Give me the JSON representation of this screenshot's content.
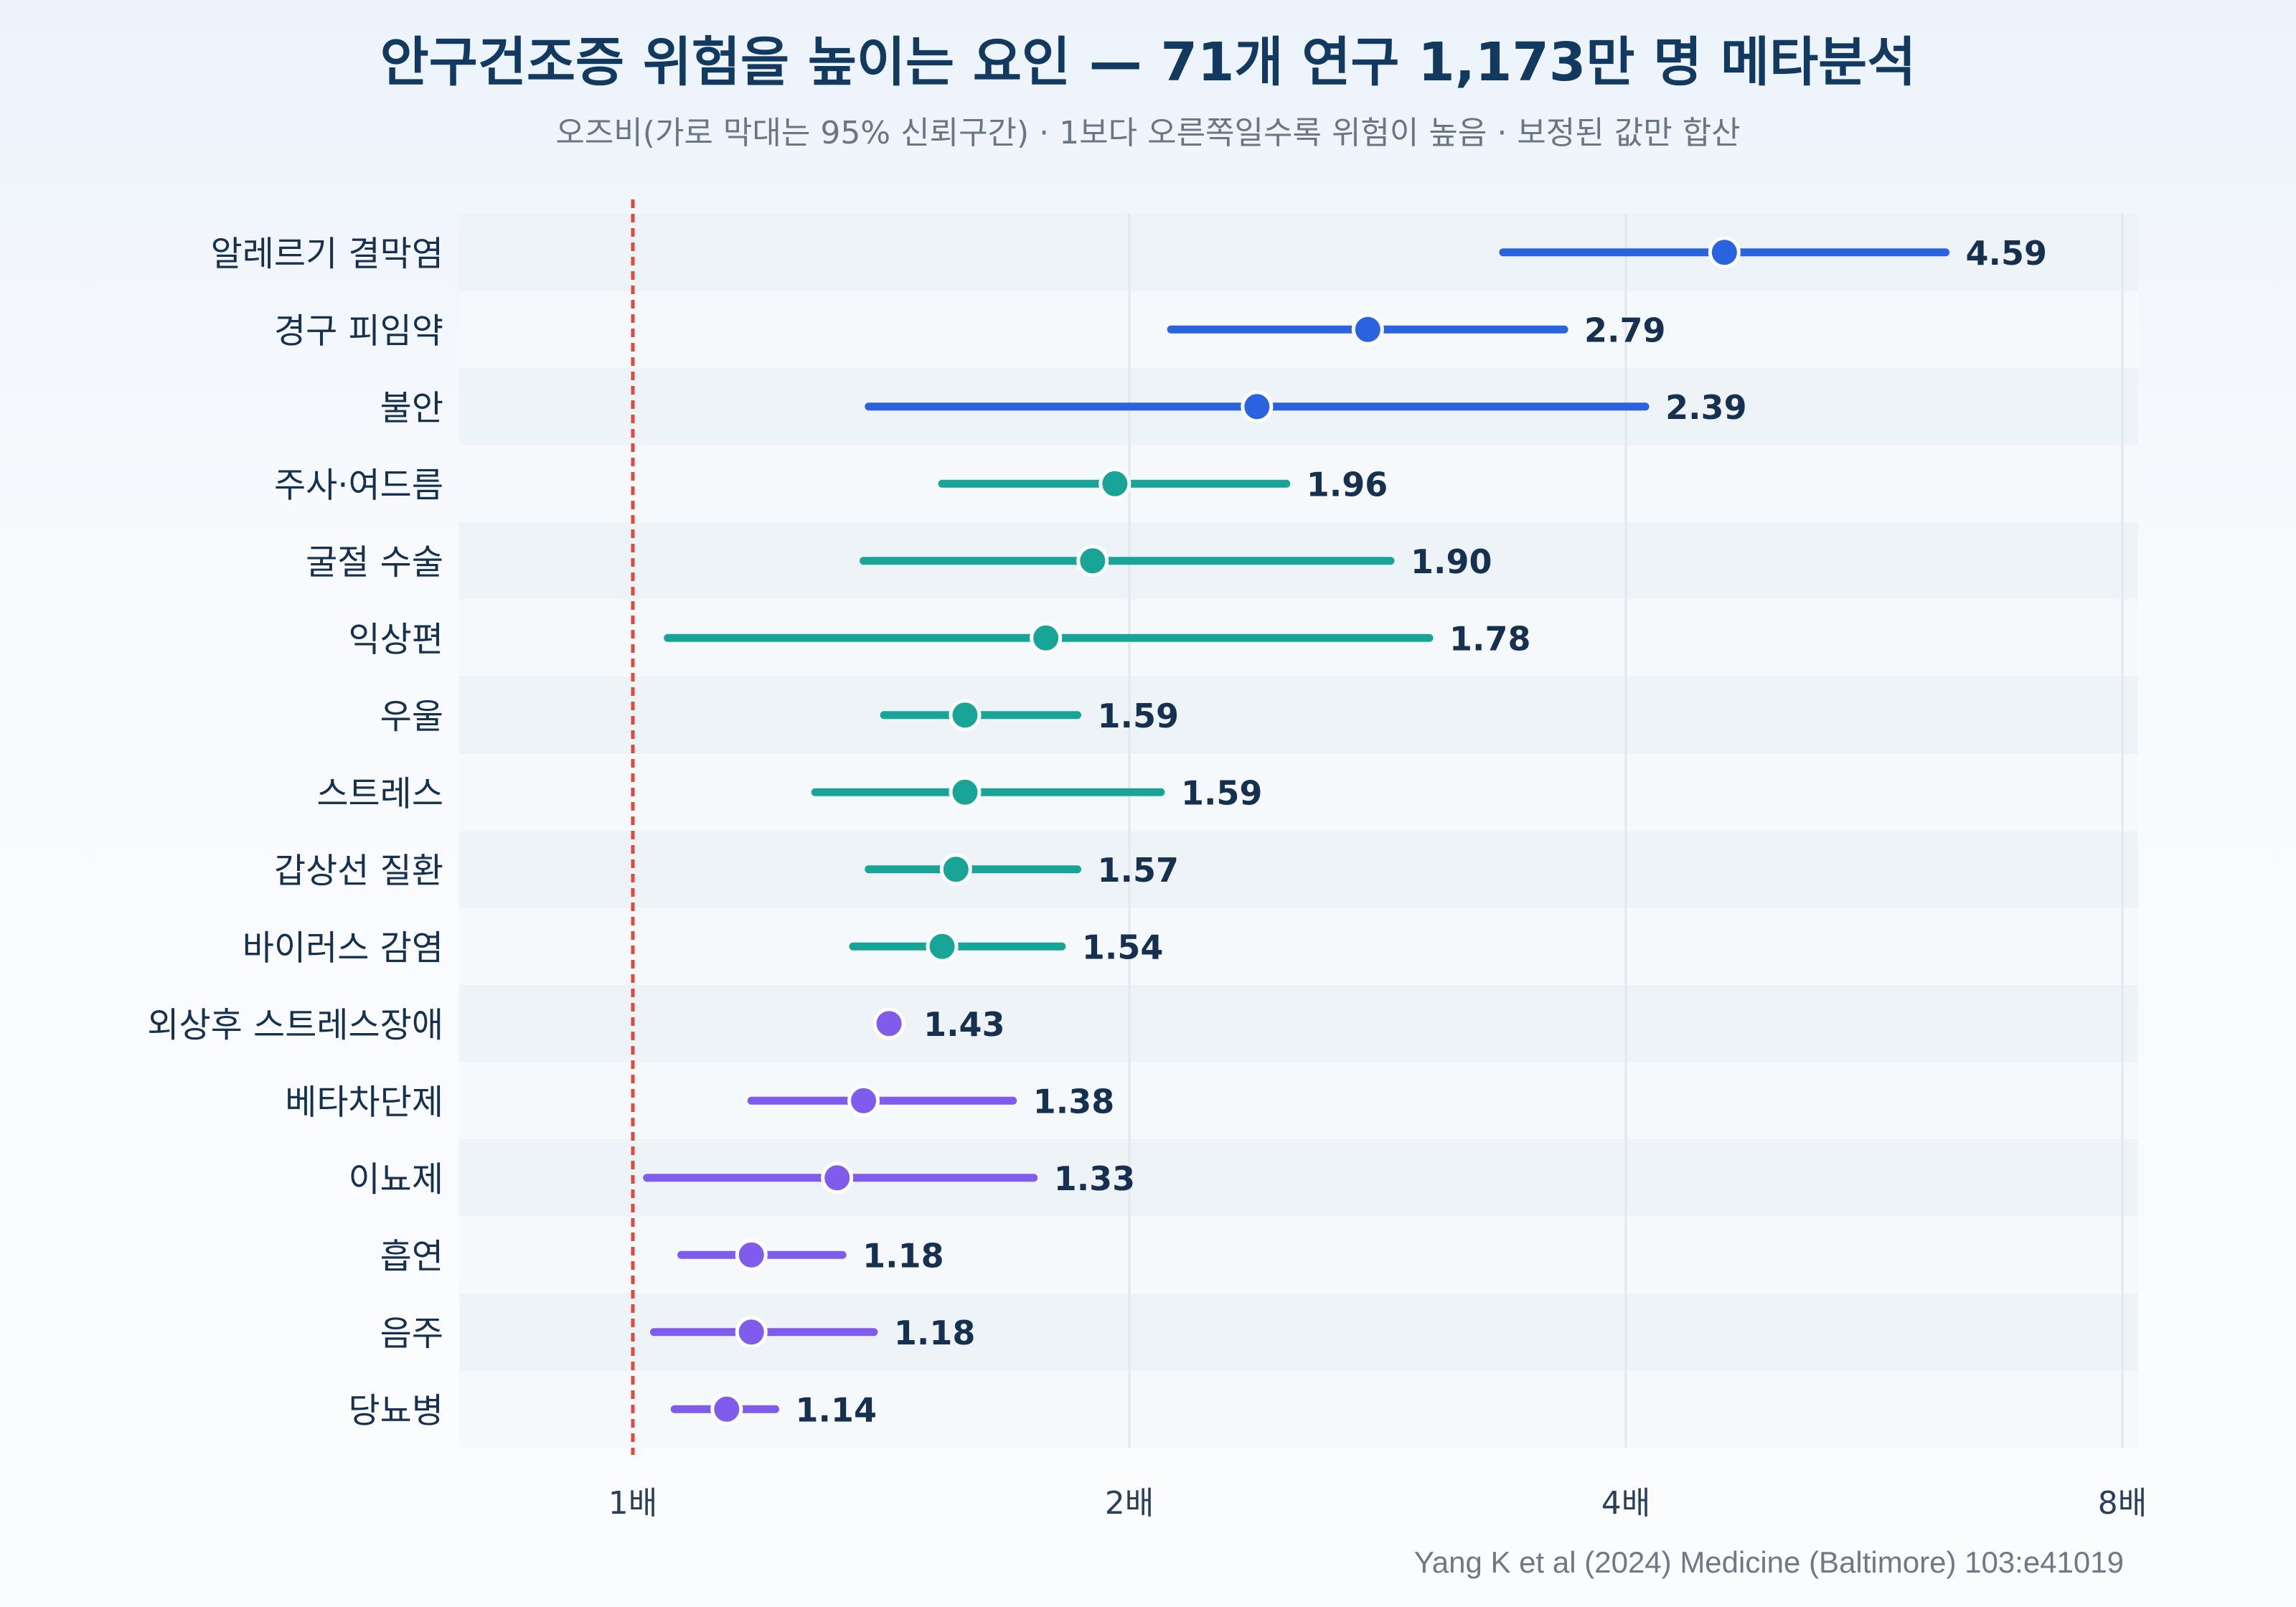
{
  "chart_data": {
    "type": "forest",
    "title": "안구건조증 위험을 높이는 요인 — 71개 연구 1,173만 명 메타분석",
    "subtitle": "오즈비(가로 막대는 95% 신뢰구간) · 1보다 오른쪽일수록 위험이 높음 · 보정된 값만 합산",
    "source": "Yang K et al (2024) Medicine (Baltimore) 103:e41019",
    "x_scale": "log2",
    "xlim": [
      0.7,
      8.1
    ],
    "x_ticks": [
      {
        "value": 1,
        "label": "1배"
      },
      {
        "value": 2,
        "label": "2배"
      },
      {
        "value": 4,
        "label": "4배"
      },
      {
        "value": 8,
        "label": "8배"
      }
    ],
    "reference_line": 1,
    "grid": true,
    "colors": {
      "blue": "#2a63e0",
      "teal": "#18a598",
      "purple": "#7f5ceb",
      "reference": "#e04a3c",
      "label": "#16314f",
      "value": "#16314f",
      "axis_text": "#2a3f5a",
      "subtitle": "#6a7586",
      "source": "#707884",
      "band": "#eef3f8",
      "grid": "#e2e7ee"
    },
    "rows": [
      {
        "label": "알레르기 결막염",
        "or": 4.59,
        "lo": 3.37,
        "hi": 6.25,
        "value_label": "4.59",
        "color": "blue"
      },
      {
        "label": "경구 피임약",
        "or": 2.79,
        "lo": 2.12,
        "hi": 3.67,
        "value_label": "2.79",
        "color": "blue"
      },
      {
        "label": "불안",
        "or": 2.39,
        "lo": 1.39,
        "hi": 4.11,
        "value_label": "2.39",
        "color": "blue"
      },
      {
        "label": "주사·여드름",
        "or": 1.96,
        "lo": 1.54,
        "hi": 2.49,
        "value_label": "1.96",
        "color": "teal"
      },
      {
        "label": "굴절 수술",
        "or": 1.9,
        "lo": 1.38,
        "hi": 2.88,
        "value_label": "1.90",
        "color": "teal"
      },
      {
        "label": "익상편",
        "or": 1.78,
        "lo": 1.05,
        "hi": 3.04,
        "value_label": "1.78",
        "color": "teal"
      },
      {
        "label": "우울",
        "or": 1.59,
        "lo": 1.42,
        "hi": 1.86,
        "value_label": "1.59",
        "color": "teal"
      },
      {
        "label": "스트레스",
        "or": 1.59,
        "lo": 1.29,
        "hi": 2.09,
        "value_label": "1.59",
        "color": "teal"
      },
      {
        "label": "갑상선 질환",
        "or": 1.57,
        "lo": 1.39,
        "hi": 1.86,
        "value_label": "1.57",
        "color": "teal"
      },
      {
        "label": "바이러스 감염",
        "or": 1.54,
        "lo": 1.36,
        "hi": 1.82,
        "value_label": "1.54",
        "color": "teal"
      },
      {
        "label": "외상후 스트레스장애",
        "or": 1.43,
        "lo": 1.42,
        "hi": 1.44,
        "value_label": "1.43",
        "color": "purple"
      },
      {
        "label": "베타차단제",
        "or": 1.38,
        "lo": 1.18,
        "hi": 1.7,
        "value_label": "1.38",
        "color": "purple"
      },
      {
        "label": "이뇨제",
        "or": 1.33,
        "lo": 1.02,
        "hi": 1.75,
        "value_label": "1.33",
        "color": "purple"
      },
      {
        "label": "흡연",
        "or": 1.18,
        "lo": 1.07,
        "hi": 1.34,
        "value_label": "1.18",
        "color": "purple"
      },
      {
        "label": "음주",
        "or": 1.18,
        "lo": 1.03,
        "hi": 1.4,
        "value_label": "1.18",
        "color": "purple"
      },
      {
        "label": "당뇨병",
        "or": 1.14,
        "lo": 1.06,
        "hi": 1.22,
        "value_label": "1.14",
        "color": "purple"
      }
    ]
  }
}
